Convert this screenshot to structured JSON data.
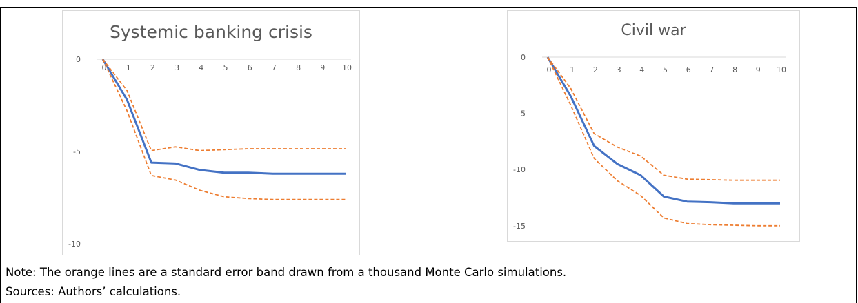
{
  "note_text": "Note: The orange lines are a standard error band drawn from a thousand Monte Carlo simulations.",
  "sources_text": "Sources: Authors’ calculations.",
  "colors": {
    "estimate": "#4472C4",
    "band": "#ED7D31",
    "axis": "#d9d9d9",
    "tick": "#595959"
  },
  "chart_data": [
    {
      "type": "line",
      "title": "Systemic banking crisis",
      "x": [
        0,
        1,
        2,
        3,
        4,
        5,
        6,
        7,
        8,
        9,
        10
      ],
      "y_ticks": [
        0,
        -5,
        -10
      ],
      "ylim": [
        -10,
        0
      ],
      "legend": "none",
      "grid": false,
      "series": [
        {
          "role": "estimate",
          "values": [
            0,
            -2.2,
            -5.6,
            -5.65,
            -6.0,
            -6.15,
            -6.15,
            -6.2,
            -6.2,
            -6.2,
            -6.2
          ]
        },
        {
          "role": "upper",
          "values": [
            0,
            -1.7,
            -4.95,
            -4.75,
            -4.95,
            -4.9,
            -4.85,
            -4.85,
            -4.85,
            -4.85,
            -4.85
          ]
        },
        {
          "role": "lower",
          "values": [
            0,
            -2.8,
            -6.3,
            -6.55,
            -7.1,
            -7.45,
            -7.55,
            -7.6,
            -7.6,
            -7.6,
            -7.6
          ]
        }
      ]
    },
    {
      "type": "line",
      "title": "Civil war",
      "x": [
        0,
        1,
        2,
        3,
        4,
        5,
        6,
        7,
        8,
        9,
        10
      ],
      "y_ticks": [
        0,
        -5,
        -10,
        -15
      ],
      "ylim": [
        -15.5,
        0
      ],
      "legend": "none",
      "grid": false,
      "series": [
        {
          "role": "estimate",
          "values": [
            0,
            -3.5,
            -7.9,
            -9.5,
            -10.5,
            -12.4,
            -12.85,
            -12.9,
            -13.0,
            -13.0,
            -13.0
          ]
        },
        {
          "role": "upper",
          "values": [
            0,
            -2.8,
            -6.8,
            -8.0,
            -8.8,
            -10.5,
            -10.85,
            -10.9,
            -10.95,
            -10.95,
            -10.95
          ]
        },
        {
          "role": "lower",
          "values": [
            0,
            -4.3,
            -9.0,
            -11.0,
            -12.3,
            -14.3,
            -14.8,
            -14.9,
            -14.95,
            -15.0,
            -15.0
          ]
        }
      ]
    }
  ]
}
